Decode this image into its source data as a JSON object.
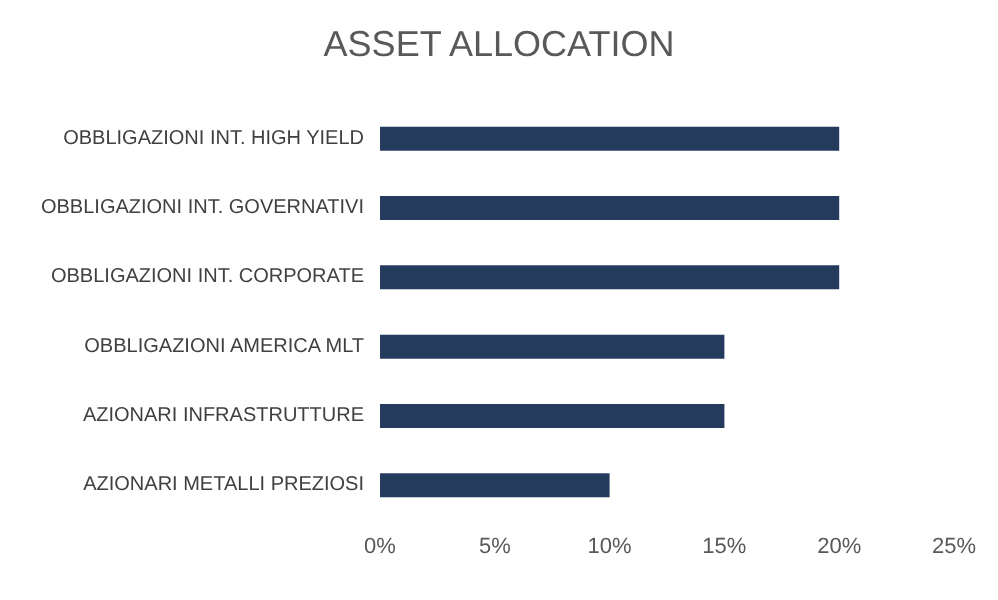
{
  "chart_data": {
    "type": "bar",
    "orientation": "horizontal",
    "title": "ASSET ALLOCATION",
    "categories": [
      "OBBLIGAZIONI INT. HIGH YIELD",
      "OBBLIGAZIONI INT. GOVERNATIVI",
      "OBBLIGAZIONI INT. CORPORATE",
      "OBBLIGAZIONI AMERICA MLT",
      "AZIONARI INFRASTRUTTURE",
      "AZIONARI METALLI PREZIOSI"
    ],
    "values": [
      20,
      20,
      20,
      15,
      15,
      10
    ],
    "color": "#243b5e",
    "xlim": [
      0,
      25
    ],
    "xticks": [
      {
        "value": 0,
        "label": "0%"
      },
      {
        "value": 5,
        "label": "5%"
      },
      {
        "value": 10,
        "label": "10%"
      },
      {
        "value": 15,
        "label": "15%"
      },
      {
        "value": 20,
        "label": "20%"
      },
      {
        "value": 25,
        "label": "25%"
      }
    ]
  }
}
